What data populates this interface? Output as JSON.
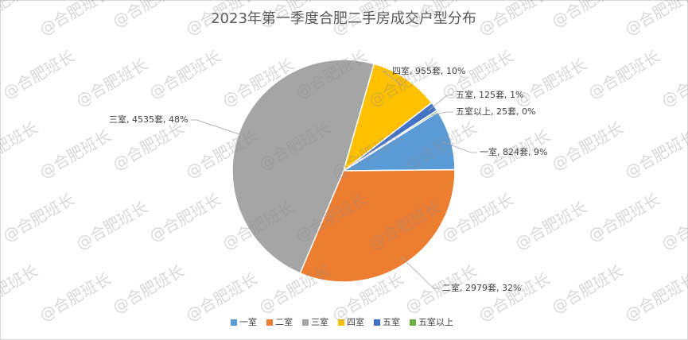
{
  "chart_data": {
    "type": "pie",
    "title": "2023年第一季度合肥二手房成交户型分布",
    "categories": [
      "一室",
      "二室",
      "三室",
      "四室",
      "五室",
      "五室以上"
    ],
    "values": [
      824,
      2979,
      4535,
      955,
      125,
      25
    ],
    "value_labels": [
      "一室, 824套, 9%",
      "二室, 2979套, 32%",
      "三室, 4535套, 48%",
      "四室, 955套, 10%",
      "五室, 125套, 1%",
      "五室以上, 25套, 0%"
    ],
    "colors": [
      "#5b9bd5",
      "#ed7d31",
      "#a5a5a5",
      "#ffc000",
      "#4472c4",
      "#70ad47"
    ],
    "legend": "bottom",
    "watermark": "@合肥班长"
  }
}
